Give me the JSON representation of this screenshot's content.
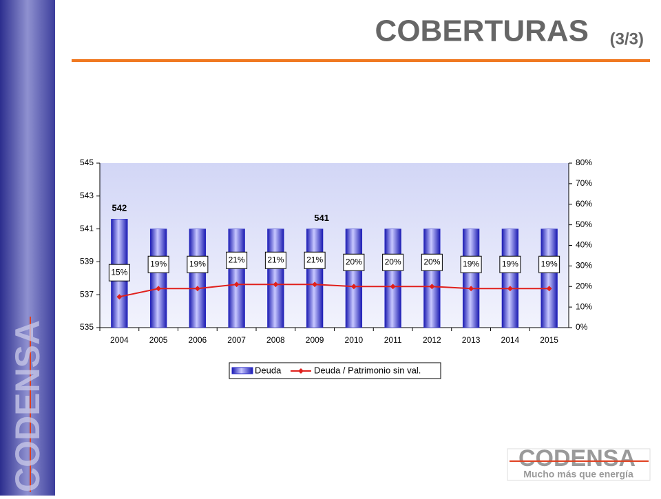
{
  "slide": {
    "title": "COBERTURAS",
    "page": "(3/3)",
    "brand": "CODENSA",
    "tagline": "Mucho más que energía"
  },
  "chart_data": {
    "type": "bar-line",
    "categories": [
      "2004",
      "2005",
      "2006",
      "2007",
      "2008",
      "2009",
      "2010",
      "2011",
      "2012",
      "2013",
      "2014",
      "2015"
    ],
    "series": [
      {
        "name": "Deuda",
        "color": "#2626c8",
        "values": [
          541.6,
          541,
          541,
          541,
          541,
          541,
          541,
          541,
          541,
          541,
          541,
          541
        ],
        "value_labels": [
          "542",
          null,
          null,
          null,
          null,
          "541",
          null,
          null,
          null,
          null,
          null,
          null
        ]
      },
      {
        "name": "Deuda / Patrimonio sin val.",
        "color": "#e0201c",
        "axis": "y2",
        "values": [
          15,
          19,
          19,
          21,
          21,
          21,
          20,
          20,
          20,
          19,
          19,
          19
        ],
        "value_labels": [
          "15%",
          "19%",
          "19%",
          "21%",
          "21%",
          "21%",
          "20%",
          "20%",
          "20%",
          "19%",
          "19%",
          "19%"
        ]
      }
    ],
    "ylim": [
      535,
      545
    ],
    "yticks": [
      535,
      537,
      539,
      541,
      543,
      545
    ],
    "y2lim": [
      0,
      80
    ],
    "y2ticks": [
      {
        "value": 0,
        "label": "0%"
      },
      {
        "value": 10,
        "label": "10%"
      },
      {
        "value": 20,
        "label": "20%"
      },
      {
        "value": 30,
        "label": "30%"
      },
      {
        "value": 40,
        "label": "40%"
      },
      {
        "value": 50,
        "label": "50%"
      },
      {
        "value": 60,
        "label": "60%"
      },
      {
        "value": 70,
        "label": "70%"
      },
      {
        "value": 80,
        "label": "80%"
      }
    ],
    "legend": "bottom"
  }
}
